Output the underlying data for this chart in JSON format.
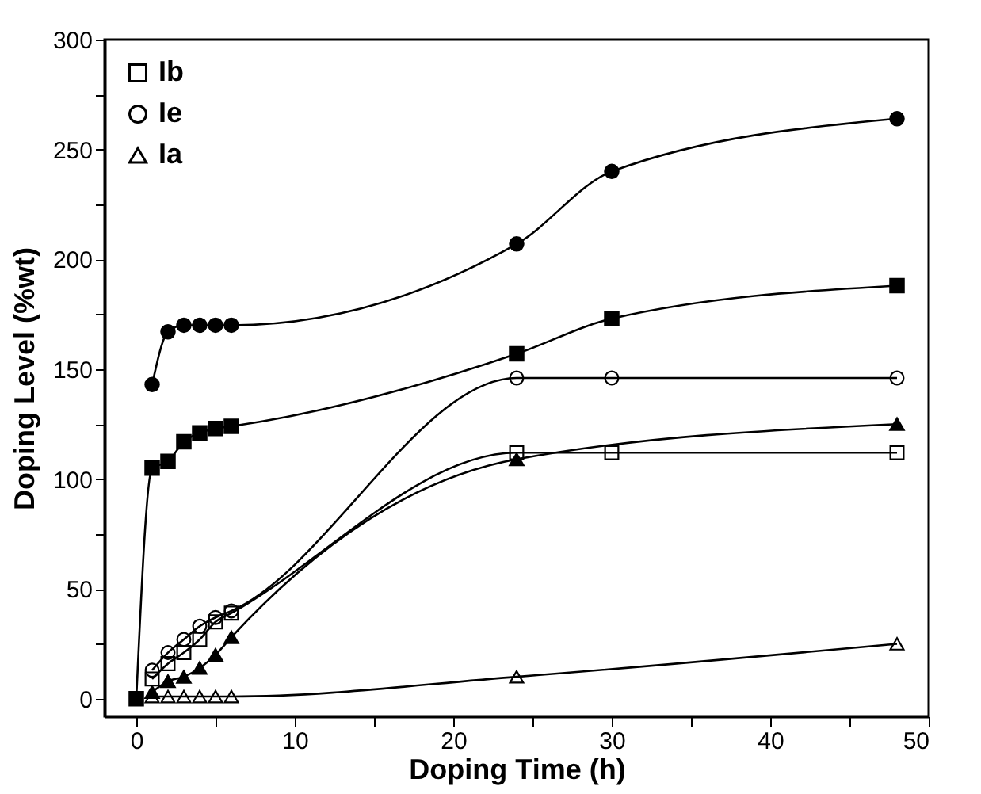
{
  "chart_data": {
    "type": "line",
    "xlabel": "Doping Time (h)",
    "ylabel": "Doping Level (%wt)",
    "xlim": [
      -2,
      50
    ],
    "ylim": [
      -8,
      300
    ],
    "xticks": [
      0,
      {
        "value": 5,
        "label": null
      },
      10,
      {
        "value": 15,
        "label": null
      },
      20,
      {
        "value": 25,
        "label": null
      },
      30,
      {
        "value": 35,
        "label": null
      },
      40,
      {
        "value": 45,
        "label": null
      },
      50
    ],
    "yticks": [
      0,
      {
        "value": 25,
        "label": null
      },
      50,
      {
        "value": 75,
        "label": null
      },
      100,
      {
        "value": 125,
        "label": null
      },
      150,
      {
        "value": 175,
        "label": null
      },
      200,
      {
        "value": 225,
        "label": null
      },
      250,
      {
        "value": 275,
        "label": null
      },
      300
    ],
    "legend": "top left",
    "grid": false,
    "series": [
      {
        "name": "Ib",
        "color": "#000000",
        "marker": "square",
        "x": [
          1,
          2,
          3,
          4,
          5,
          6,
          24,
          30,
          48
        ],
        "values": [
          9,
          16,
          21,
          27,
          35,
          39,
          112,
          112,
          112
        ]
      },
      {
        "name": "Ie",
        "color": "#000000",
        "marker": "circle",
        "x": [
          1,
          2,
          3,
          4,
          5,
          6,
          24,
          30,
          48
        ],
        "values": [
          13,
          21,
          27,
          33,
          37,
          40,
          146,
          146,
          146
        ]
      },
      {
        "name": "Ia",
        "color": "#000000",
        "marker": "triangle",
        "x": [
          1,
          2,
          3,
          4,
          5,
          6,
          24,
          48
        ],
        "values": [
          1,
          1,
          1,
          1,
          1,
          1,
          10,
          25
        ]
      },
      {
        "color": "#000000",
        "marker": "square",
        "x": [
          0,
          1,
          2,
          3,
          4,
          5,
          6,
          24,
          30,
          48
        ],
        "values": [
          0,
          105,
          108,
          117,
          121,
          123,
          124,
          157,
          173,
          188
        ]
      },
      {
        "color": "#000000",
        "marker": "circle",
        "x": [
          1,
          2,
          3,
          4,
          5,
          6,
          24,
          30,
          48
        ],
        "values": [
          143,
          167,
          170,
          170,
          170,
          170,
          207,
          240,
          264
        ]
      },
      {
        "color": "#000000",
        "marker": "triangle",
        "x": [
          1,
          2,
          3,
          4,
          5,
          6,
          24,
          48
        ],
        "values": [
          3,
          8,
          10,
          14,
          20,
          28,
          109,
          125
        ]
      }
    ]
  }
}
